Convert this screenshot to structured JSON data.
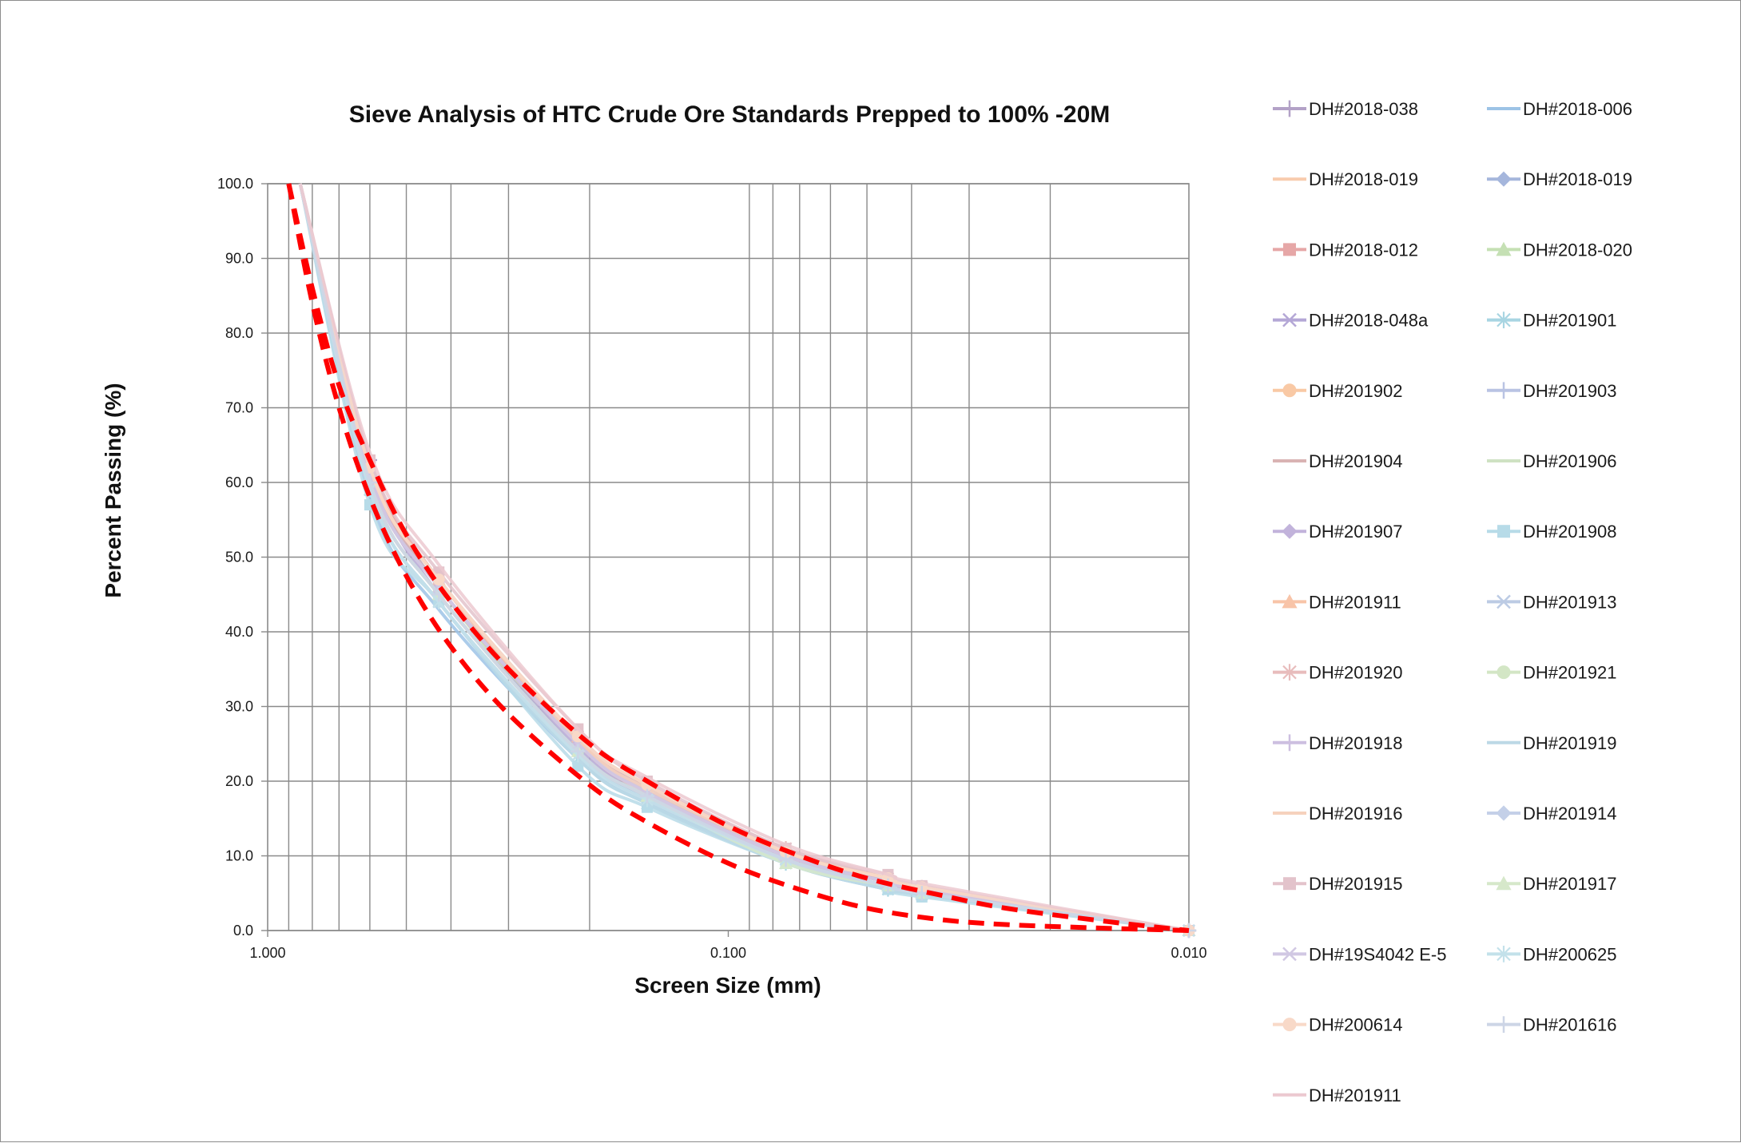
{
  "chart_data": {
    "type": "line",
    "title": "Sieve Analysis of HTC Crude Ore Standards Prepped to 100% -20M",
    "xlabel": "Screen Size (mm)",
    "ylabel": "Percent Passing (%)",
    "x_scale": "log",
    "x_reversed": true,
    "xlim": [
      1.0,
      0.01
    ],
    "ylim": [
      0,
      100
    ],
    "x_ticks": [
      "1.000",
      "0.100",
      "0.010"
    ],
    "y_ticks": [
      "0.0",
      "10.0",
      "20.0",
      "30.0",
      "40.0",
      "50.0",
      "60.0",
      "70.0",
      "80.0",
      "90.0",
      "100.0"
    ],
    "grid": true,
    "legend_position": "right",
    "sieve_sizes_mm": [
      0.85,
      0.6,
      0.425,
      0.212,
      0.15,
      0.075,
      0.045,
      0.038,
      0.01
    ],
    "series": [
      {
        "name": "DH#2018-038",
        "color": "#b3a2c7",
        "marker": "plus",
        "values": [
          100,
          63,
          46,
          26,
          19,
          10.5,
          6.5,
          5.5,
          0
        ]
      },
      {
        "name": "DH#2018-006",
        "color": "#9dc3e6",
        "marker": "none",
        "values": [
          100,
          58,
          43,
          23,
          17,
          9,
          5.5,
          4.8,
          0
        ]
      },
      {
        "name": "DH#2018-019",
        "color": "#f8cbad",
        "marker": "none",
        "values": [
          100,
          62,
          47,
          25,
          18.5,
          10.5,
          7,
          5.8,
          0
        ]
      },
      {
        "name": "DH#2018-019",
        "color": "#a5b6dc",
        "marker": "diamond",
        "values": [
          100,
          60,
          45,
          24,
          17.5,
          9.5,
          6,
          5,
          0
        ]
      },
      {
        "name": "DH#2018-012",
        "color": "#e6a7a7",
        "marker": "square",
        "values": [
          100,
          63,
          47,
          25.5,
          19,
          10.5,
          7,
          5.5,
          0
        ]
      },
      {
        "name": "DH#2018-020",
        "color": "#c5e0b4",
        "marker": "triangle",
        "values": [
          100,
          61,
          46,
          24,
          18,
          9,
          6,
          5,
          0
        ]
      },
      {
        "name": "DH#2018-048a",
        "color": "#b4a7d6",
        "marker": "x",
        "values": [
          100,
          62,
          45,
          24.5,
          18,
          10,
          6.5,
          5.3,
          0
        ]
      },
      {
        "name": "DH#201901",
        "color": "#a8d5e2",
        "marker": "star",
        "values": [
          100,
          59,
          44,
          23,
          17,
          9,
          5.5,
          4.8,
          0
        ]
      },
      {
        "name": "DH#201902",
        "color": "#f9c9a5",
        "marker": "circle",
        "values": [
          100,
          61,
          46,
          25,
          18.5,
          10,
          6.5,
          5.5,
          0
        ]
      },
      {
        "name": "DH#201903",
        "color": "#b9c3e3",
        "marker": "plus",
        "values": [
          100,
          60,
          45,
          24,
          18,
          9.5,
          6,
          5,
          0
        ]
      },
      {
        "name": "DH#201904",
        "color": "#d9b3b3",
        "marker": "none",
        "values": [
          100,
          62,
          46,
          25,
          19,
          10,
          6.5,
          5.5,
          0
        ]
      },
      {
        "name": "DH#201906",
        "color": "#cfe2c3",
        "marker": "none",
        "values": [
          100,
          60,
          45,
          24,
          18,
          9,
          6,
          5,
          0
        ]
      },
      {
        "name": "DH#201907",
        "color": "#c2b3db",
        "marker": "diamond",
        "values": [
          100,
          61,
          46,
          25,
          19,
          10.5,
          6.8,
          5.5,
          0
        ]
      },
      {
        "name": "DH#201908",
        "color": "#b7dbe8",
        "marker": "square",
        "values": [
          100,
          57,
          44,
          22,
          16.5,
          9,
          5.5,
          4.5,
          0
        ]
      },
      {
        "name": "DH#201911",
        "color": "#f8c4a8",
        "marker": "triangle",
        "values": [
          100,
          62,
          47,
          26,
          19.5,
          10.5,
          7,
          5.8,
          0
        ]
      },
      {
        "name": "DH#201913",
        "color": "#bccbe4",
        "marker": "x",
        "values": [
          100,
          59,
          44,
          23.5,
          17.5,
          9.5,
          6,
          5,
          0
        ]
      },
      {
        "name": "DH#201920",
        "color": "#e8bcbc",
        "marker": "star",
        "values": [
          100,
          62,
          47,
          26,
          19.5,
          11,
          7,
          5.8,
          0
        ]
      },
      {
        "name": "DH#201921",
        "color": "#d3e6c5",
        "marker": "circle",
        "values": [
          100,
          60,
          45,
          24,
          18,
          9.5,
          6,
          5,
          0
        ]
      },
      {
        "name": "DH#201918",
        "color": "#cdbfe0",
        "marker": "plus",
        "values": [
          100,
          61,
          46,
          25,
          18.5,
          10,
          6.5,
          5.5,
          0
        ]
      },
      {
        "name": "DH#201919",
        "color": "#bcd8e6",
        "marker": "none",
        "values": [
          100,
          59,
          44,
          23,
          17,
          9,
          5.5,
          4.8,
          0
        ]
      },
      {
        "name": "DH#201916",
        "color": "#f6d2bd",
        "marker": "none",
        "values": [
          100,
          62,
          47,
          25.5,
          19,
          10.5,
          7,
          5.8,
          0
        ]
      },
      {
        "name": "DH#201914",
        "color": "#c4d0e8",
        "marker": "diamond",
        "values": [
          100,
          60,
          45,
          24,
          18,
          9.5,
          6,
          5,
          0
        ]
      },
      {
        "name": "DH#201915",
        "color": "#e3c3cb",
        "marker": "square",
        "values": [
          100,
          63,
          48,
          27,
          20,
          11,
          7.5,
          6,
          0
        ]
      },
      {
        "name": "DH#201917",
        "color": "#d6e8ca",
        "marker": "triangle",
        "values": [
          100,
          60,
          45,
          24,
          18,
          9,
          6,
          5,
          0
        ]
      },
      {
        "name": "DH#19S4042 E-5",
        "color": "#d1c8e3",
        "marker": "x",
        "values": [
          100,
          61,
          46,
          25,
          18.5,
          10,
          6.5,
          5.5,
          0
        ]
      },
      {
        "name": "DH#200625",
        "color": "#c3e1ea",
        "marker": "star",
        "values": [
          100,
          59,
          44,
          23.5,
          17.5,
          9.5,
          6,
          5,
          0
        ]
      },
      {
        "name": "DH#200614",
        "color": "#f8d9c8",
        "marker": "circle",
        "values": [
          100,
          62,
          47,
          26,
          19.5,
          10.5,
          7,
          5.8,
          0
        ]
      },
      {
        "name": "DH#201616",
        "color": "#cdd5e6",
        "marker": "plus",
        "values": [
          100,
          60,
          45,
          24,
          18,
          9.5,
          6,
          5,
          0
        ]
      },
      {
        "name": "DH#201911",
        "color": "#ecc9d0",
        "marker": "none",
        "values": [
          100,
          64,
          49,
          27,
          20.5,
          11.5,
          7.5,
          6.3,
          0
        ]
      }
    ],
    "envelopes": [
      {
        "color": "#ff0000",
        "style": "dashed",
        "x": [
          0.9,
          0.8,
          0.7,
          0.6,
          0.5,
          0.4,
          0.3,
          0.2,
          0.15,
          0.1,
          0.07,
          0.05,
          0.035,
          0.025,
          0.015,
          0.01
        ],
        "values": [
          100,
          84,
          70,
          58,
          47.5,
          38,
          29,
          19.5,
          14.5,
          9,
          5.5,
          3,
          1.5,
          0.8,
          0.3,
          0
        ]
      },
      {
        "color": "#ff0000",
        "style": "dashed",
        "x": [
          0.9,
          0.8,
          0.7,
          0.6,
          0.5,
          0.4,
          0.3,
          0.2,
          0.15,
          0.1,
          0.07,
          0.05,
          0.035,
          0.025,
          0.015,
          0.01
        ],
        "values": [
          100,
          86,
          73,
          63,
          53,
          44,
          35,
          25,
          20,
          14,
          10,
          7,
          4.8,
          3,
          1.2,
          0
        ]
      }
    ]
  }
}
